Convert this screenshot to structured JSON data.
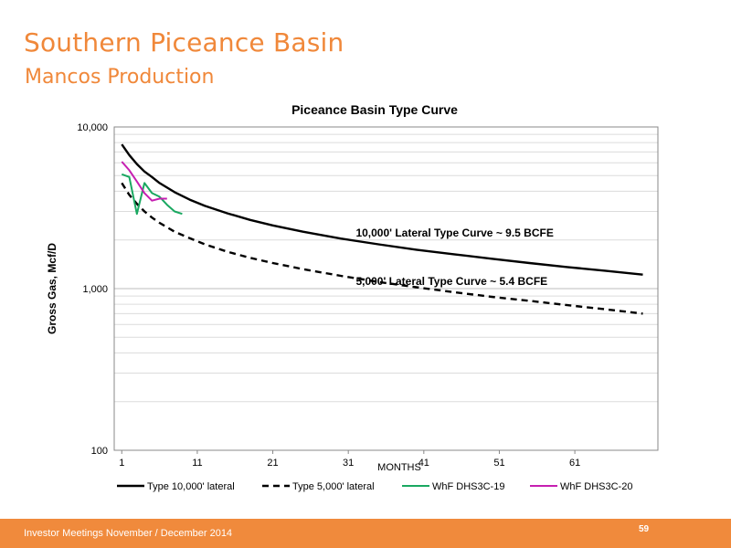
{
  "slide": {
    "title": "Southern Piceance Basin",
    "subtitle": "Mancos Production",
    "footer": "Investor Meetings November / December 2014",
    "page_number": "59"
  },
  "colors": {
    "accent": "#f08a3c",
    "type_curve": "#000000",
    "whf_19": "#1aa861",
    "whf_20": "#c61fb1"
  },
  "chart_data": {
    "type": "line",
    "title": "Piceance Basin Type Curve",
    "xlabel": "MONTHS",
    "ylabel": "Gross Gas, Mcf/D",
    "y_scale": "log",
    "xlim": [
      0,
      72
    ],
    "ylim": [
      100,
      10000
    ],
    "x_ticks": [
      1,
      11,
      21,
      31,
      41,
      51,
      61
    ],
    "y_ticks": [
      100,
      1000,
      10000
    ],
    "y_tick_labels": [
      "100",
      "1,000",
      "10,000"
    ],
    "grid": "horizontal",
    "legend_position": "bottom",
    "annotations": [
      {
        "text": "10,000' Lateral Type Curve ~ 9.5 BCFE",
        "x": 32,
        "y": 2100
      },
      {
        "text": "5,000' Lateral Type Curve ~ 5.4 BCFE",
        "x": 32,
        "y": 1050
      }
    ],
    "series": [
      {
        "name": "Type 10,000' lateral",
        "style": "solid",
        "color": "#000000",
        "x": [
          1,
          2,
          3,
          4,
          5,
          6,
          8,
          10,
          12,
          15,
          18,
          21,
          25,
          30,
          35,
          40,
          45,
          50,
          55,
          60,
          65,
          70
        ],
        "y": [
          7800,
          6700,
          5900,
          5300,
          4900,
          4500,
          3950,
          3550,
          3250,
          2920,
          2660,
          2460,
          2250,
          2040,
          1880,
          1740,
          1630,
          1530,
          1440,
          1360,
          1290,
          1220
        ]
      },
      {
        "name": "Type 5,000' lateral",
        "style": "dashed",
        "color": "#000000",
        "x": [
          1,
          2,
          3,
          4,
          5,
          6,
          8,
          10,
          12,
          15,
          18,
          21,
          25,
          30,
          35,
          40,
          45,
          50,
          55,
          60,
          65,
          70
        ],
        "y": [
          4500,
          3800,
          3350,
          3000,
          2750,
          2550,
          2250,
          2050,
          1880,
          1690,
          1550,
          1440,
          1320,
          1200,
          1100,
          1020,
          950,
          890,
          840,
          790,
          745,
          700
        ]
      },
      {
        "name": "WhF DHS3C-19",
        "style": "solid",
        "color": "#1aa861",
        "x": [
          1,
          2,
          3,
          4,
          5,
          6,
          7,
          8,
          9
        ],
        "y": [
          5100,
          4900,
          2900,
          4500,
          3900,
          3700,
          3300,
          3000,
          2900
        ]
      },
      {
        "name": "WhF DHS3C-20",
        "style": "solid",
        "color": "#c61fb1",
        "x": [
          1,
          2,
          3,
          4,
          5,
          6,
          7
        ],
        "y": [
          6100,
          5400,
          4600,
          3900,
          3500,
          3600,
          3600
        ]
      }
    ]
  }
}
